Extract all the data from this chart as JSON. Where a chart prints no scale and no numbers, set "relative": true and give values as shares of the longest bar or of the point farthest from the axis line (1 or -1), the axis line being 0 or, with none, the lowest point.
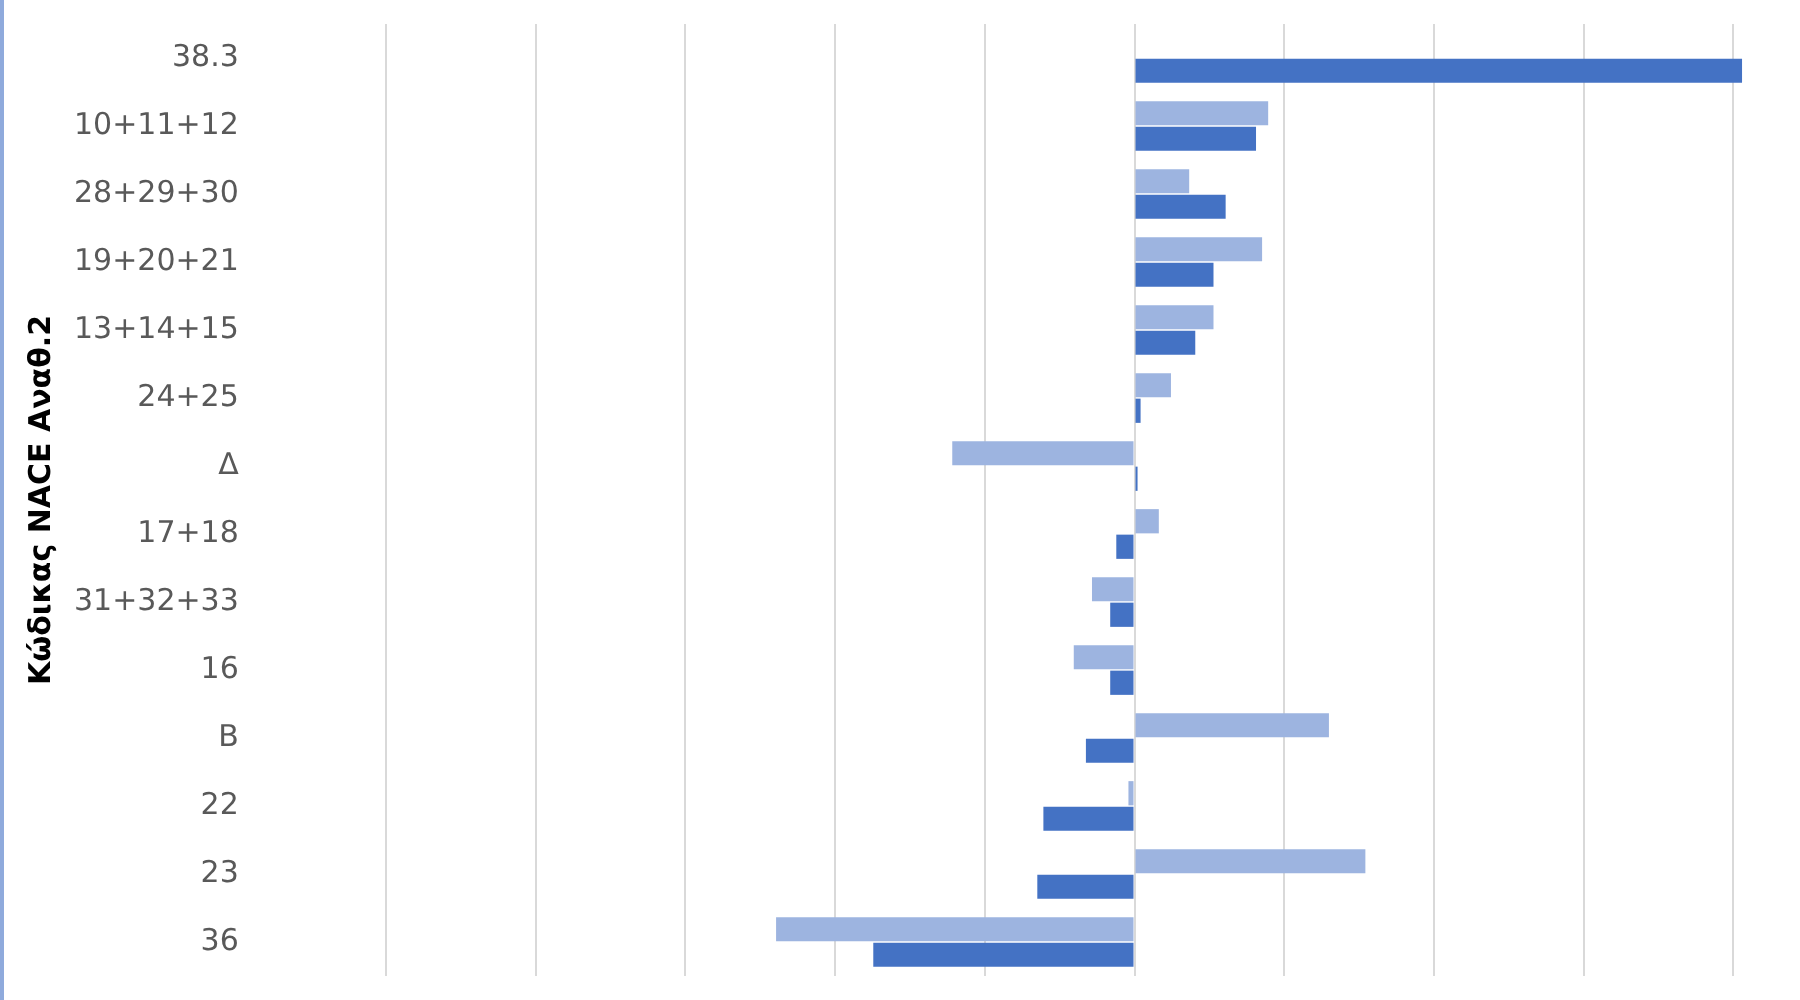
{
  "chart_data": {
    "type": "bar",
    "orientation": "horizontal",
    "relative": true,
    "ylabel": "Κώδικας NACE Αναθ.2",
    "grid": "x",
    "legend": false,
    "categories": [
      "38.3",
      "10+11+12",
      "28+29+30",
      "19+20+21",
      "13+14+15",
      "24+25",
      "Δ",
      "17+18",
      "31+32+33",
      "16",
      "B",
      "22",
      "23",
      "36"
    ],
    "series": [
      {
        "color": "#9db4e0",
        "values": [
          null,
          0.22,
          0.09,
          0.21,
          0.13,
          0.06,
          -0.3,
          0.04,
          -0.07,
          -0.1,
          0.32,
          -0.01,
          0.38,
          -0.59
        ]
      },
      {
        "color": "#4472c4",
        "values": [
          1,
          0.2,
          0.15,
          0.13,
          0.1,
          0.01,
          0.005,
          -0.03,
          -0.04,
          -0.04,
          -0.08,
          -0.15,
          -0.16,
          -0.43
        ]
      }
    ]
  }
}
